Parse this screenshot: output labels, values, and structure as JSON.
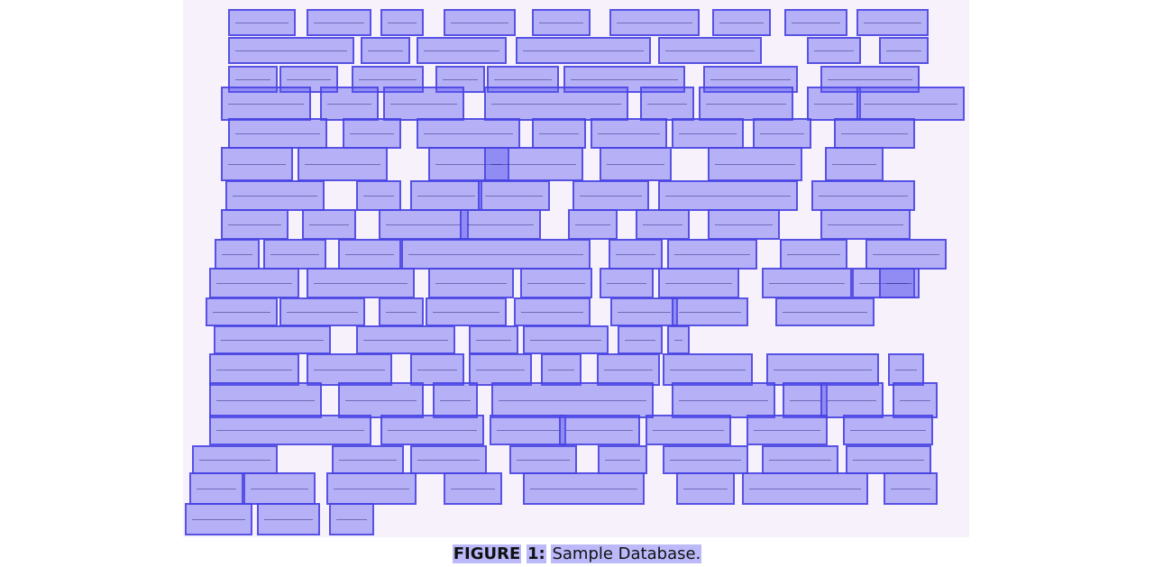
{
  "caption": {
    "figure_label": "FIGURE",
    "figure_number": "1:",
    "text": "Sample Database."
  },
  "colors": {
    "page_background": "#ffffff",
    "sheet_background": "#f7f1fb",
    "box_fill": "#5c58f0",
    "box_border": "#4642e1"
  }
}
